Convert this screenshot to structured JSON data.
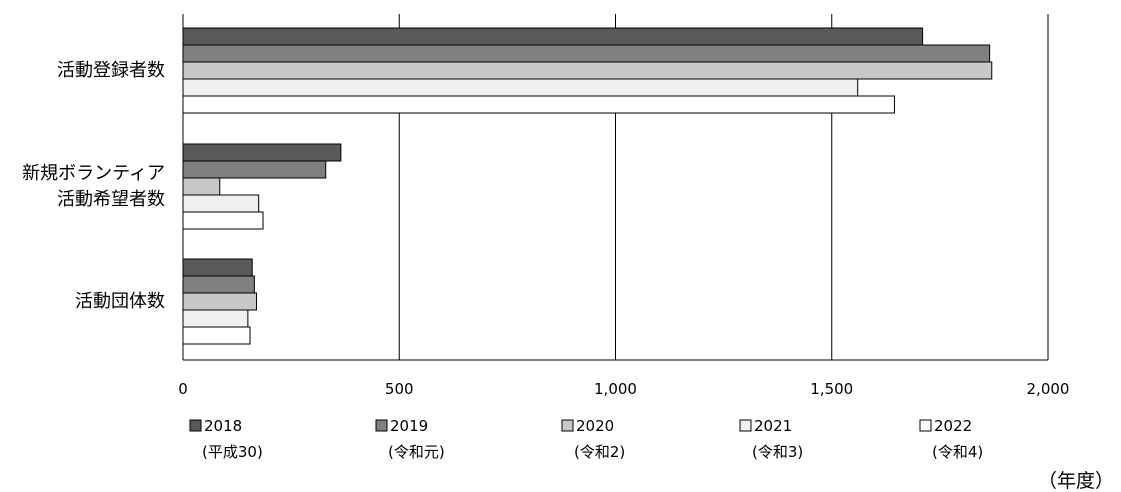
{
  "chart_data": {
    "type": "bar",
    "orientation": "horizontal",
    "title": "",
    "xlabel": "",
    "ylabel": "",
    "categories": [
      [
        "活動登録者数"
      ],
      [
        "新規ボランティア",
        "活動希望者数"
      ],
      [
        "活動団体数"
      ]
    ],
    "series": [
      {
        "name": "2018",
        "name_sub": "(平成30)",
        "color": "#595959",
        "values": [
          1710,
          365,
          160
        ]
      },
      {
        "name": "2019",
        "name_sub": "(令和元)",
        "color": "#808080",
        "values": [
          1865,
          330,
          165
        ]
      },
      {
        "name": "2020",
        "name_sub": "(令和2)",
        "color": "#c8c8c8",
        "values": [
          1870,
          85,
          170
        ]
      },
      {
        "name": "2021",
        "name_sub": "(令和3)",
        "color": "#f0f0f0",
        "values": [
          1560,
          175,
          150
        ]
      },
      {
        "name": "2022",
        "name_sub": "(令和4)",
        "color": "#ffffff",
        "values": [
          1645,
          185,
          155
        ]
      }
    ],
    "xlim": [
      0,
      2000
    ],
    "x_ticks": [
      {
        "value": 0,
        "label": "0"
      },
      {
        "value": 500,
        "label": "500"
      },
      {
        "value": 1000,
        "label": "1,000"
      },
      {
        "value": 1500,
        "label": "1,500"
      },
      {
        "value": 2000,
        "label": "2,000"
      }
    ],
    "grid": "vertical",
    "legend_position": "bottom",
    "unit_note": "（年度）"
  }
}
